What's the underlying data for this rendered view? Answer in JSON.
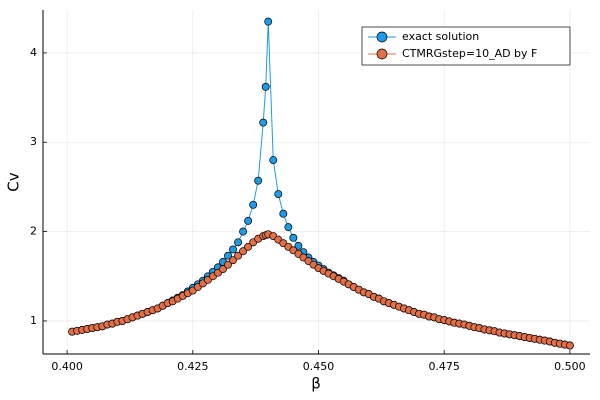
{
  "chart_data": {
    "type": "line",
    "x_label": "β",
    "y_label": "Cv",
    "x": [
      0.401,
      0.402,
      0.403,
      0.404,
      0.405,
      0.406,
      0.407,
      0.408,
      0.409,
      0.41,
      0.411,
      0.412,
      0.413,
      0.414,
      0.415,
      0.416,
      0.417,
      0.418,
      0.419,
      0.42,
      0.421,
      0.422,
      0.423,
      0.424,
      0.425,
      0.426,
      0.427,
      0.428,
      0.429,
      0.43,
      0.431,
      0.432,
      0.433,
      0.434,
      0.435,
      0.436,
      0.437,
      0.438,
      0.439,
      0.4395,
      0.44,
      0.441,
      0.442,
      0.443,
      0.444,
      0.445,
      0.446,
      0.447,
      0.448,
      0.449,
      0.45,
      0.451,
      0.452,
      0.453,
      0.454,
      0.455,
      0.456,
      0.457,
      0.458,
      0.459,
      0.46,
      0.461,
      0.462,
      0.463,
      0.464,
      0.465,
      0.466,
      0.467,
      0.468,
      0.469,
      0.47,
      0.471,
      0.472,
      0.473,
      0.474,
      0.475,
      0.476,
      0.477,
      0.478,
      0.479,
      0.48,
      0.481,
      0.482,
      0.483,
      0.484,
      0.485,
      0.486,
      0.487,
      0.488,
      0.489,
      0.49,
      0.491,
      0.492,
      0.493,
      0.494,
      0.495,
      0.496,
      0.497,
      0.498,
      0.499,
      0.5
    ],
    "series": [
      {
        "name": "exact solution",
        "color": "#1e9be6",
        "values": [
          0.88,
          0.89,
          0.9,
          0.91,
          0.92,
          0.93,
          0.94,
          0.96,
          0.97,
          0.99,
          1.0,
          1.02,
          1.04,
          1.06,
          1.08,
          1.1,
          1.12,
          1.14,
          1.17,
          1.2,
          1.23,
          1.26,
          1.29,
          1.33,
          1.37,
          1.41,
          1.45,
          1.5,
          1.55,
          1.6,
          1.66,
          1.73,
          1.8,
          1.88,
          2.0,
          2.12,
          2.3,
          2.57,
          3.22,
          3.62,
          4.35,
          2.8,
          2.42,
          2.2,
          2.05,
          1.93,
          1.84,
          1.77,
          1.71,
          1.66,
          1.62,
          1.58,
          1.54,
          1.51,
          1.48,
          1.45,
          1.41,
          1.38,
          1.35,
          1.32,
          1.3,
          1.27,
          1.25,
          1.22,
          1.2,
          1.18,
          1.16,
          1.14,
          1.12,
          1.1,
          1.08,
          1.07,
          1.05,
          1.04,
          1.02,
          1.01,
          0.995,
          0.98,
          0.97,
          0.96,
          0.945,
          0.93,
          0.92,
          0.905,
          0.895,
          0.885,
          0.87,
          0.86,
          0.85,
          0.84,
          0.83,
          0.82,
          0.81,
          0.8,
          0.79,
          0.78,
          0.77,
          0.755,
          0.745,
          0.735,
          0.725
        ]
      },
      {
        "name": "CTMRGstep=10_AD by F",
        "color": "#e26f46",
        "values": [
          0.88,
          0.89,
          0.9,
          0.91,
          0.92,
          0.93,
          0.94,
          0.96,
          0.97,
          0.99,
          1.0,
          1.02,
          1.04,
          1.06,
          1.08,
          1.1,
          1.12,
          1.14,
          1.17,
          1.2,
          1.22,
          1.25,
          1.28,
          1.31,
          1.34,
          1.38,
          1.42,
          1.46,
          1.5,
          1.54,
          1.58,
          1.63,
          1.68,
          1.73,
          1.78,
          1.83,
          1.88,
          1.92,
          1.95,
          1.96,
          1.97,
          1.95,
          1.91,
          1.87,
          1.83,
          1.79,
          1.75,
          1.71,
          1.67,
          1.63,
          1.59,
          1.56,
          1.53,
          1.5,
          1.47,
          1.44,
          1.41,
          1.38,
          1.35,
          1.32,
          1.3,
          1.27,
          1.25,
          1.22,
          1.2,
          1.18,
          1.16,
          1.14,
          1.12,
          1.1,
          1.08,
          1.07,
          1.05,
          1.04,
          1.02,
          1.01,
          0.995,
          0.98,
          0.97,
          0.96,
          0.945,
          0.93,
          0.92,
          0.905,
          0.895,
          0.885,
          0.87,
          0.86,
          0.85,
          0.84,
          0.83,
          0.82,
          0.81,
          0.8,
          0.79,
          0.78,
          0.77,
          0.755,
          0.745,
          0.735,
          0.725
        ]
      }
    ],
    "xlim": [
      0.3952,
      0.504
    ],
    "ylim": [
      0.63,
      4.48
    ],
    "xticks": [
      {
        "value": 0.4,
        "label": "0.400"
      },
      {
        "value": 0.425,
        "label": "0.425"
      },
      {
        "value": 0.45,
        "label": "0.450"
      },
      {
        "value": 0.475,
        "label": "0.475"
      },
      {
        "value": 0.5,
        "label": "0.500"
      }
    ],
    "yticks": [
      1,
      2,
      3,
      4
    ],
    "grid": true,
    "legend": "top-right"
  }
}
